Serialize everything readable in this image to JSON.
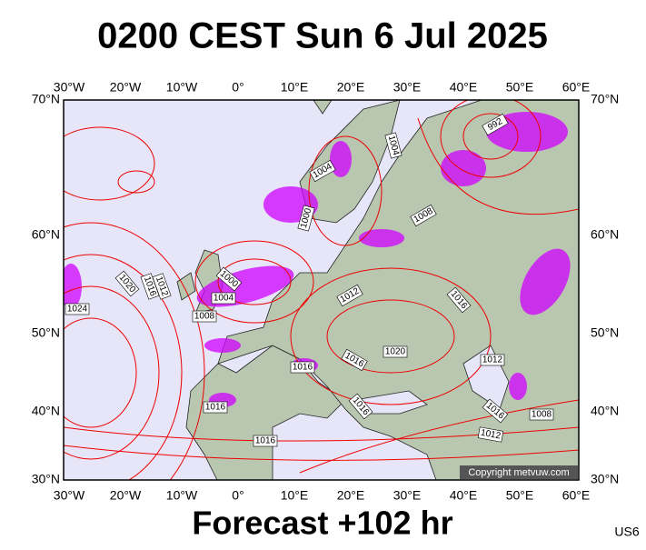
{
  "header": {
    "title": "0200 CEST Sun 6 Jul 2025"
  },
  "map": {
    "lon_labels": [
      "30°W",
      "20°W",
      "10°W",
      "0°",
      "10°E",
      "20°E",
      "30°E",
      "40°E",
      "50°E",
      "60°E"
    ],
    "lat_labels": [
      "70°N",
      "60°N",
      "50°N",
      "40°N",
      "30°N"
    ],
    "isobar_labels": [
      "992",
      "1004",
      "1004",
      "1000",
      "1008",
      "1012",
      "1016",
      "1020",
      "1000",
      "1004",
      "1008",
      "1024",
      "1012",
      "1016",
      "1020",
      "1016",
      "1016",
      "1012",
      "1016",
      "1016",
      "1016",
      "1008",
      "1016",
      "1012"
    ],
    "copyright": "Copyright metvuw.com"
  },
  "footer": {
    "forecast": "Forecast +102 hr",
    "model": "US6"
  }
}
